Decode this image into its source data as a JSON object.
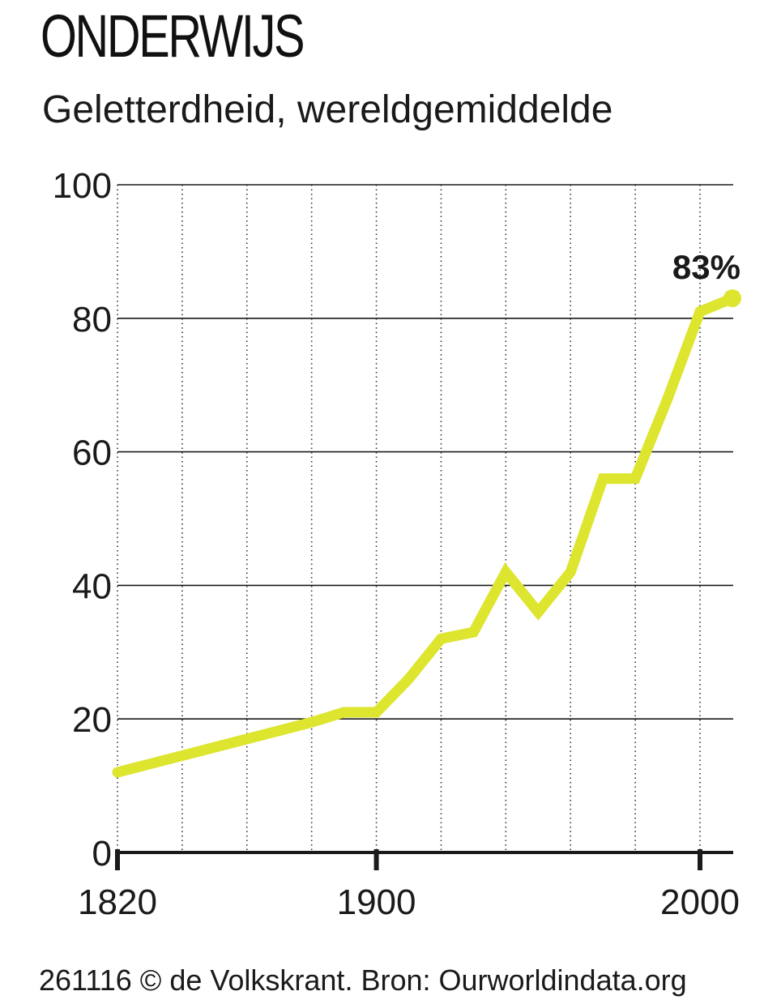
{
  "header": {
    "title": "ONDERWIJS",
    "subtitle": "Geletterdheid, wereldgemiddelde"
  },
  "footer": {
    "source": "261116 © de Volkskrant. Bron: Ourworldindata.org"
  },
  "chart_data": {
    "type": "line",
    "title": "ONDERWIJS",
    "subtitle": "Geletterdheid, wereldgemiddelde",
    "xlabel": "",
    "ylabel": "",
    "xlim": [
      1820,
      2010
    ],
    "ylim": [
      0,
      100
    ],
    "x_ticks": [
      1820,
      1900,
      2000
    ],
    "y_ticks": [
      0,
      20,
      40,
      60,
      80,
      100
    ],
    "x_gridlines": [
      1820,
      1840,
      1860,
      1880,
      1900,
      1920,
      1940,
      1960,
      1980,
      2000
    ],
    "grid": true,
    "line_color": "#dde52e",
    "series": [
      {
        "x": [
          1820,
          1840,
          1860,
          1880,
          1890,
          1900,
          1910,
          1920,
          1930,
          1940,
          1950,
          1960,
          1970,
          1980,
          1990,
          2000,
          2010
        ],
        "values": [
          12,
          14.5,
          17,
          19.5,
          21,
          21,
          26,
          32,
          33,
          42,
          36,
          42,
          56,
          56,
          68,
          81,
          83
        ]
      }
    ],
    "annotations": [
      {
        "x": 2010,
        "y": 83,
        "text": "83%"
      }
    ]
  }
}
